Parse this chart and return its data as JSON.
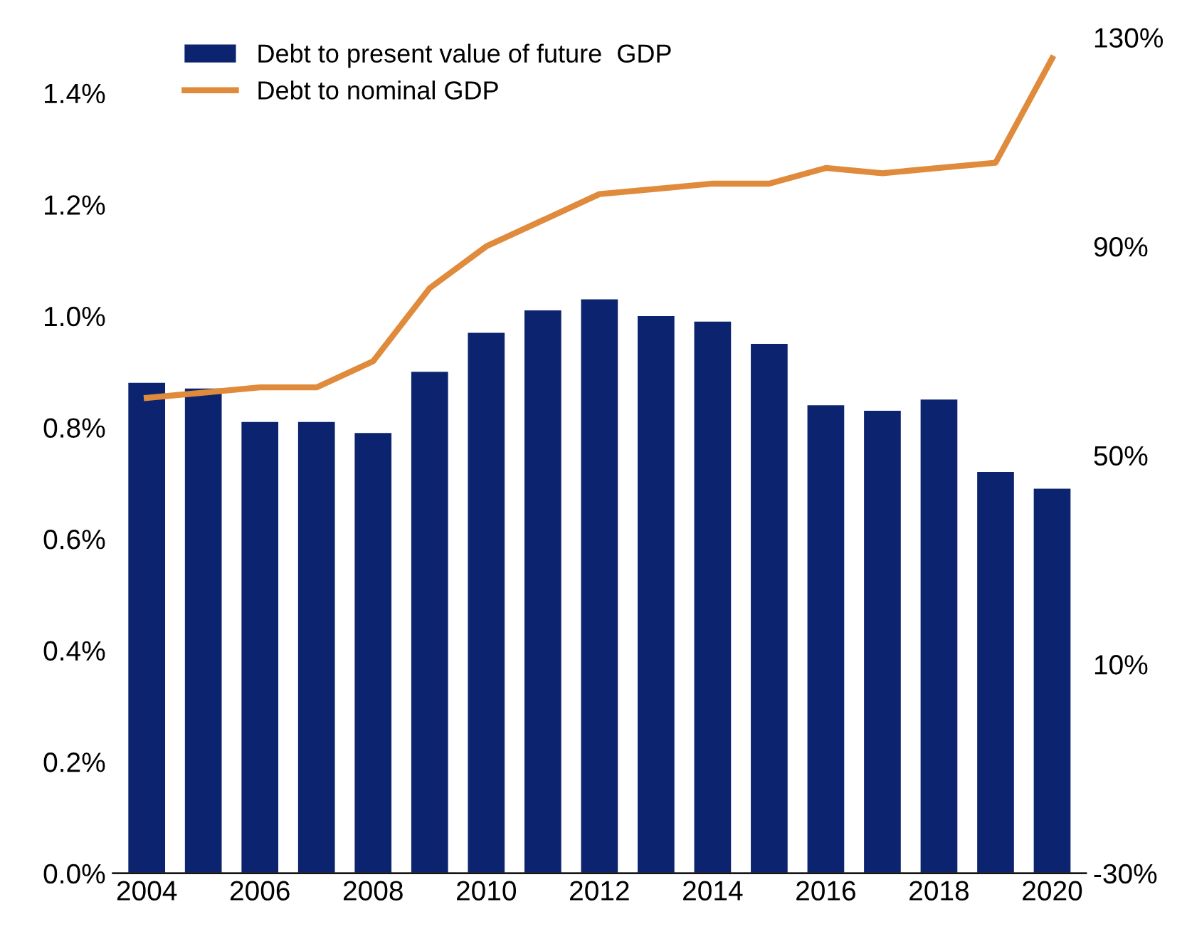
{
  "chart_data": {
    "type": "bar",
    "categories": [
      "2004",
      null,
      "2006",
      null,
      "2008",
      null,
      "2010",
      null,
      "2012",
      null,
      "2014",
      null,
      "2016",
      null,
      "2018",
      null,
      "2020"
    ],
    "series": [
      {
        "name": "Debt to present value of future  GDP",
        "color": "#0c2470",
        "values": [
          0.88,
          0.87,
          0.81,
          0.81,
          0.79,
          0.9,
          0.97,
          1.01,
          1.03,
          1.0,
          0.99,
          0.95,
          0.84,
          0.83,
          0.85,
          0.72,
          0.69
        ]
      },
      {
        "name": "Debt to nominal GDP",
        "type": "line",
        "axis": "y2",
        "color": "#e08a3c",
        "values": [
          61,
          62,
          63,
          63,
          68,
          82,
          90,
          95,
          100,
          101,
          102,
          102,
          105,
          104,
          105,
          106,
          126
        ]
      }
    ],
    "ylim": [
      0,
      1.5
    ],
    "yticks": [
      {
        "value": 0,
        "label": "0.0%"
      },
      {
        "value": 0.2,
        "label": "0.2%"
      },
      {
        "value": 0.4,
        "label": "0.4%"
      },
      {
        "value": 0.6,
        "label": "0.6%"
      },
      {
        "value": 0.8,
        "label": "0.8%"
      },
      {
        "value": 1.0,
        "label": "1.0%"
      },
      {
        "value": 1.2,
        "label": "1.2%"
      },
      {
        "value": 1.4,
        "label": "1.4%"
      }
    ],
    "y2lim": [
      -30,
      130
    ],
    "y2ticks": [
      {
        "value": -30,
        "label": "-30%"
      },
      {
        "value": 10,
        "label": "10%"
      },
      {
        "value": 50,
        "label": "50%"
      },
      {
        "value": 90,
        "label": "90%"
      },
      {
        "value": 130,
        "label": "130%"
      }
    ],
    "legend": "top left",
    "grid": false,
    "marker": "none",
    "line_style": "solid"
  }
}
